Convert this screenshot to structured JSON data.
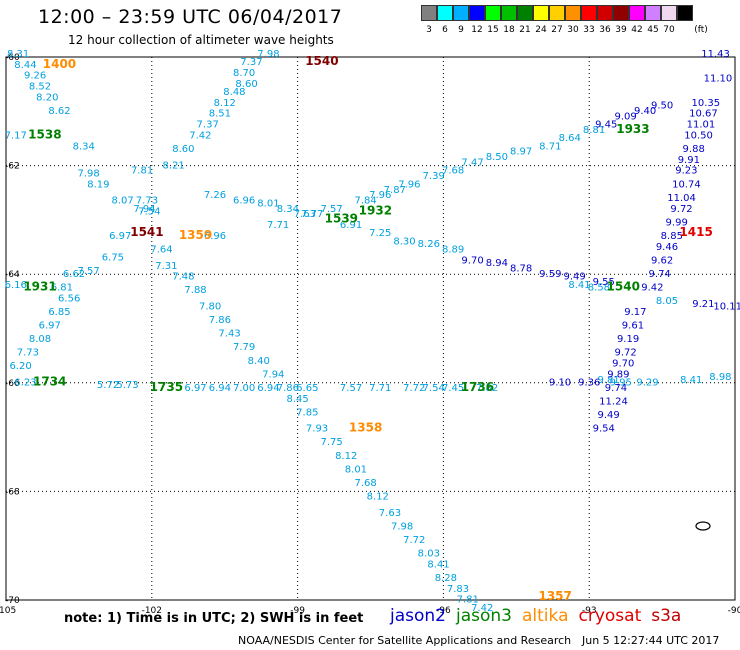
{
  "header": {
    "title": "12:00 – 23:59 UTC 06/04/2017",
    "subtitle": "12 hour collection of altimeter wave heights"
  },
  "legend": {
    "unit": "(ft)",
    "bins": [
      {
        "label": "3",
        "color": "#808080"
      },
      {
        "label": "6",
        "color": "#00ffff"
      },
      {
        "label": "9",
        "color": "#00b0ff"
      },
      {
        "label": "12",
        "color": "#0000ff"
      },
      {
        "label": "15",
        "color": "#00ff00"
      },
      {
        "label": "18",
        "color": "#00c000"
      },
      {
        "label": "21",
        "color": "#008000"
      },
      {
        "label": "24",
        "color": "#ffff00"
      },
      {
        "label": "27",
        "color": "#ffd000"
      },
      {
        "label": "30",
        "color": "#ff9000"
      },
      {
        "label": "33",
        "color": "#ff0000"
      },
      {
        "label": "36",
        "color": "#d00000"
      },
      {
        "label": "39",
        "color": "#900000"
      },
      {
        "label": "42",
        "color": "#ff00ff"
      },
      {
        "label": "45",
        "color": "#d080ff"
      },
      {
        "label": "70",
        "color": "#f0d8f0"
      },
      {
        "label": "",
        "color": "#000000"
      }
    ]
  },
  "axes": {
    "lon_labels": [
      "-105",
      "-102",
      "-99",
      "-96",
      "-93",
      "-90"
    ],
    "lat_labels": [
      "-60",
      "-62",
      "-64",
      "-66",
      "-68",
      "-70"
    ],
    "lon_range": [
      -105,
      -90
    ],
    "lat_range": [
      -70,
      -60
    ]
  },
  "colors": {
    "jason2": "#0000c8",
    "jason3": "#008000",
    "altika": "#ff8c00",
    "cryosat": "#e00000",
    "s3a": "#c00000",
    "cyan_track": "#00a0e0",
    "time_dark": "#800000"
  },
  "time_labels": [
    {
      "text": "1400",
      "lon": -103.9,
      "lat": -60.2,
      "color": "#ff8c00"
    },
    {
      "text": "1540",
      "lon": -98.5,
      "lat": -60.15,
      "color": "#800000"
    },
    {
      "text": "1538",
      "lon": -104.2,
      "lat": -61.5,
      "color": "#008000"
    },
    {
      "text": "1933",
      "lon": -92.1,
      "lat": -61.4,
      "color": "#008000"
    },
    {
      "text": "1932",
      "lon": -97.4,
      "lat": -62.9,
      "color": "#008000"
    },
    {
      "text": "1539",
      "lon": -98.1,
      "lat": -63.05,
      "color": "#008000"
    },
    {
      "text": "1541",
      "lon": -102.1,
      "lat": -63.3,
      "color": "#800000"
    },
    {
      "text": "1359",
      "lon": -101.1,
      "lat": -63.35,
      "color": "#ff8c00"
    },
    {
      "text": "1415",
      "lon": -90.8,
      "lat": -63.3,
      "color": "#e00000"
    },
    {
      "text": "1931",
      "lon": -104.3,
      "lat": -64.3,
      "color": "#008000"
    },
    {
      "text": "1540",
      "lon": -92.3,
      "lat": -64.3,
      "color": "#008000"
    },
    {
      "text": "1734",
      "lon": -104.1,
      "lat": -66.05,
      "color": "#008000"
    },
    {
      "text": "1735",
      "lon": -101.7,
      "lat": -66.15,
      "color": "#008000"
    },
    {
      "text": "1736",
      "lon": -95.3,
      "lat": -66.15,
      "color": "#008000"
    },
    {
      "text": "1358",
      "lon": -97.6,
      "lat": -66.9,
      "color": "#ff8c00"
    },
    {
      "text": "1357",
      "lon": -93.7,
      "lat": -70.0,
      "color": "#ff8c00"
    }
  ],
  "tracks": [
    {
      "name": "cyan NW-SE descending",
      "color": "#00a0e0",
      "points": [
        {
          "v": "8.31",
          "lon": -104.75,
          "lat": -60.0
        },
        {
          "v": "8.44",
          "lon": -104.6,
          "lat": -60.2
        },
        {
          "v": "9.26",
          "lon": -104.4,
          "lat": -60.4
        },
        {
          "v": "8.52",
          "lon": -104.3,
          "lat": -60.6
        },
        {
          "v": "8.20",
          "lon": -104.15,
          "lat": -60.8
        },
        {
          "v": "8.62",
          "lon": -103.9,
          "lat": -61.05
        },
        {
          "v": "8.34",
          "lon": -103.4,
          "lat": -61.7
        },
        {
          "v": "8.19",
          "lon": -103.1,
          "lat": -62.4
        },
        {
          "v": "8.07",
          "lon": -102.6,
          "lat": -62.7
        },
        {
          "v": "7.73",
          "lon": -102.1,
          "lat": -62.7
        },
        {
          "v": "7.54",
          "lon": -102.05,
          "lat": -62.9
        },
        {
          "v": "7.31",
          "lon": -101.7,
          "lat": -63.9
        },
        {
          "v": "7.48",
          "lon": -101.35,
          "lat": -64.1
        },
        {
          "v": "7.88",
          "lon": -101.1,
          "lat": -64.35
        },
        {
          "v": "7.80",
          "lon": -100.8,
          "lat": -64.65
        },
        {
          "v": "7.86",
          "lon": -100.6,
          "lat": -64.9
        },
        {
          "v": "7.43",
          "lon": -100.4,
          "lat": -65.15
        },
        {
          "v": "7.79",
          "lon": -100.1,
          "lat": -65.4
        },
        {
          "v": "8.40",
          "lon": -99.8,
          "lat": -65.65
        },
        {
          "v": "7.94",
          "lon": -99.5,
          "lat": -65.9
        },
        {
          "v": "7.86",
          "lon": -99.2,
          "lat": -66.15
        },
        {
          "v": "8.45",
          "lon": -99.0,
          "lat": -66.35
        },
        {
          "v": "7.85",
          "lon": -98.8,
          "lat": -66.6
        },
        {
          "v": "7.93",
          "lon": -98.6,
          "lat": -66.9
        },
        {
          "v": "7.75",
          "lon": -98.3,
          "lat": -67.15
        },
        {
          "v": "8.12",
          "lon": -98.0,
          "lat": -67.4
        },
        {
          "v": "8.01",
          "lon": -97.8,
          "lat": -67.65
        },
        {
          "v": "7.68",
          "lon": -97.6,
          "lat": -67.9
        },
        {
          "v": "8.12",
          "lon": -97.35,
          "lat": -68.15
        },
        {
          "v": "7.63",
          "lon": -97.1,
          "lat": -68.45
        },
        {
          "v": "7.98",
          "lon": -96.85,
          "lat": -68.7
        },
        {
          "v": "7.72",
          "lon": -96.6,
          "lat": -68.95
        },
        {
          "v": "8.03",
          "lon": -96.3,
          "lat": -69.2
        },
        {
          "v": "8.41",
          "lon": -96.1,
          "lat": -69.4
        },
        {
          "v": "8.28",
          "lon": -95.95,
          "lat": -69.65
        },
        {
          "v": "7.83",
          "lon": -95.7,
          "lat": -69.85
        },
        {
          "v": "7.81",
          "lon": -95.5,
          "lat": -70.05
        },
        {
          "v": "7.42",
          "lon": -95.2,
          "lat": -70.2
        }
      ]
    },
    {
      "name": "cyan SW-NE ascending",
      "color": "#00a0e0",
      "points": [
        {
          "v": "7.98",
          "lon": -99.6,
          "lat": -60.0
        },
        {
          "v": "7.37",
          "lon": -99.95,
          "lat": -60.15
        },
        {
          "v": "8.70",
          "lon": -100.1,
          "lat": -60.35
        },
        {
          "v": "8.60",
          "lon": -100.05,
          "lat": -60.55
        },
        {
          "v": "8.48",
          "lon": -100.3,
          "lat": -60.7
        },
        {
          "v": "8.12",
          "lon": -100.5,
          "lat": -60.9
        },
        {
          "v": "8.51",
          "lon": -100.6,
          "lat": -61.1
        },
        {
          "v": "7.37",
          "lon": -100.85,
          "lat": -61.3
        },
        {
          "v": "7.42",
          "lon": -101.0,
          "lat": -61.5
        },
        {
          "v": "8.60",
          "lon": -101.35,
          "lat": -61.75
        },
        {
          "v": "8.21",
          "lon": -101.55,
          "lat": -62.05
        },
        {
          "v": "7.94",
          "lon": -102.15,
          "lat": -62.85
        },
        {
          "v": "6.97",
          "lon": -102.65,
          "lat": -63.35
        },
        {
          "v": "6.75",
          "lon": -102.8,
          "lat": -63.75
        },
        {
          "v": "7.57",
          "lon": -103.3,
          "lat": -64.0
        },
        {
          "v": "6.81",
          "lon": -103.85,
          "lat": -64.3
        },
        {
          "v": "6.56",
          "lon": -103.7,
          "lat": -64.5
        },
        {
          "v": "6.85",
          "lon": -103.9,
          "lat": -64.75
        },
        {
          "v": "6.97",
          "lon": -104.1,
          "lat": -65.0
        },
        {
          "v": "8.08",
          "lon": -104.3,
          "lat": -65.25
        },
        {
          "v": "7.73",
          "lon": -104.55,
          "lat": -65.5
        },
        {
          "v": "6.20",
          "lon": -104.7,
          "lat": -65.75
        }
      ]
    },
    {
      "name": "cyan W-E lower band",
      "color": "#00a0e0",
      "points": [
        {
          "v": "6.23",
          "lon": -104.6,
          "lat": -66.05
        },
        {
          "v": "5.72",
          "lon": -102.9,
          "lat": -66.1
        },
        {
          "v": "5.73",
          "lon": -102.5,
          "lat": -66.1
        },
        {
          "v": "6.97",
          "lon": -101.1,
          "lat": -66.15
        },
        {
          "v": "6.94",
          "lon": -100.6,
          "lat": -66.15
        },
        {
          "v": "7.00",
          "lon": -100.1,
          "lat": -66.15
        },
        {
          "v": "6.94",
          "lon": -99.6,
          "lat": -66.15
        },
        {
          "v": "6.65",
          "lon": -98.8,
          "lat": -66.15
        },
        {
          "v": "7.57",
          "lon": -97.9,
          "lat": -66.15
        },
        {
          "v": "7.71",
          "lon": -97.3,
          "lat": -66.15
        },
        {
          "v": "7.72",
          "lon": -96.6,
          "lat": -66.15
        },
        {
          "v": "7.54",
          "lon": -96.2,
          "lat": -66.15
        },
        {
          "v": "7.45",
          "lon": -95.8,
          "lat": -66.15
        },
        {
          "v": "7.82",
          "lon": -95.1,
          "lat": -66.15
        }
      ]
    },
    {
      "name": "cyan SW-NE long",
      "color": "#00a0e0",
      "points": [
        {
          "v": "8.81",
          "lon": -92.9,
          "lat": -61.4
        },
        {
          "v": "8.64",
          "lon": -93.4,
          "lat": -61.55
        },
        {
          "v": "8.71",
          "lon": -93.8,
          "lat": -61.7
        },
        {
          "v": "8.97",
          "lon": -94.4,
          "lat": -61.8
        },
        {
          "v": "8.50",
          "lon": -94.9,
          "lat": -61.9
        },
        {
          "v": "7.47",
          "lon": -95.4,
          "lat": -62.0
        },
        {
          "v": "7.68",
          "lon": -95.8,
          "lat": -62.15
        },
        {
          "v": "7.39",
          "lon": -96.2,
          "lat": -62.25
        },
        {
          "v": "7.96",
          "lon": -96.7,
          "lat": -62.4
        },
        {
          "v": "7.87",
          "lon": -97.0,
          "lat": -62.5
        },
        {
          "v": "7.96",
          "lon": -97.3,
          "lat": -62.6
        },
        {
          "v": "7.84",
          "lon": -97.6,
          "lat": -62.7
        },
        {
          "v": "7.57",
          "lon": -98.3,
          "lat": -62.85
        },
        {
          "v": "7.77",
          "lon": -98.7,
          "lat": -62.95
        },
        {
          "v": "7.71",
          "lon": -99.4,
          "lat": -63.15
        },
        {
          "v": "6.96",
          "lon": -100.7,
          "lat": -63.35
        },
        {
          "v": "7.64",
          "lon": -101.8,
          "lat": -63.6
        },
        {
          "v": "6.62",
          "lon": -103.6,
          "lat": -64.05
        },
        {
          "v": "6.16",
          "lon": -104.8,
          "lat": -64.25
        }
      ]
    },
    {
      "name": "cyan WNW-ESE",
      "color": "#00a0e0",
      "points": [
        {
          "v": "7.17",
          "lon": -104.8,
          "lat": -61.5
        },
        {
          "v": "7.98",
          "lon": -103.3,
          "lat": -62.2
        },
        {
          "v": "7.81",
          "lon": -102.2,
          "lat": -62.15
        },
        {
          "v": "7.26",
          "lon": -100.7,
          "lat": -62.6
        },
        {
          "v": "6.96",
          "lon": -100.1,
          "lat": -62.7
        },
        {
          "v": "8.01",
          "lon": -99.6,
          "lat": -62.75
        },
        {
          "v": "8.34",
          "lon": -99.2,
          "lat": -62.85
        },
        {
          "v": "7.63",
          "lon": -98.85,
          "lat": -62.95
        },
        {
          "v": "6.91",
          "lon": -97.9,
          "lat": -63.15
        },
        {
          "v": "7.25",
          "lon": -97.3,
          "lat": -63.3
        },
        {
          "v": "8.30",
          "lon": -96.8,
          "lat": -63.45
        },
        {
          "v": "8.26",
          "lon": -96.3,
          "lat": -63.5
        },
        {
          "v": "8.89",
          "lon": -95.8,
          "lat": -63.6
        },
        {
          "v": "8.41",
          "lon": -93.2,
          "lat": -64.25
        },
        {
          "v": "8.58",
          "lon": -92.8,
          "lat": -64.3
        },
        {
          "v": "8.05",
          "lon": -91.4,
          "lat": -64.55
        },
        {
          "v": "9.81",
          "lon": -92.6,
          "lat": -66.0
        },
        {
          "v": "9.95",
          "lon": -92.35,
          "lat": -66.05
        },
        {
          "v": "9.29",
          "lon": -91.8,
          "lat": -66.05
        },
        {
          "v": "8.41",
          "lon": -90.9,
          "lat": -66.0
        },
        {
          "v": "8.98",
          "lon": -90.3,
          "lat": -65.95
        }
      ]
    },
    {
      "name": "jason2 N-S east",
      "color": "#0000c8",
      "points": [
        {
          "v": "11.43",
          "lon": -90.4,
          "lat": -60.0
        },
        {
          "v": "11.10",
          "lon": -90.35,
          "lat": -60.45
        },
        {
          "v": "10.35",
          "lon": -90.6,
          "lat": -60.9
        },
        {
          "v": "10.67",
          "lon": -90.65,
          "lat": -61.1
        },
        {
          "v": "11.01",
          "lon": -90.7,
          "lat": -61.3
        },
        {
          "v": "10.50",
          "lon": -90.75,
          "lat": -61.5
        },
        {
          "v": "9.88",
          "lon": -90.85,
          "lat": -61.75
        },
        {
          "v": "9.91",
          "lon": -90.95,
          "lat": -61.95
        },
        {
          "v": "9.23",
          "lon": -91.0,
          "lat": -62.15
        },
        {
          "v": "10.74",
          "lon": -91.0,
          "lat": -62.4
        },
        {
          "v": "11.04",
          "lon": -91.1,
          "lat": -62.65
        },
        {
          "v": "9.72",
          "lon": -91.1,
          "lat": -62.85
        },
        {
          "v": "9.99",
          "lon": -91.2,
          "lat": -63.1
        },
        {
          "v": "8.85",
          "lon": -91.3,
          "lat": -63.35
        },
        {
          "v": "9.46",
          "lon": -91.4,
          "lat": -63.55
        },
        {
          "v": "9.62",
          "lon": -91.5,
          "lat": -63.8
        },
        {
          "v": "9.74",
          "lon": -91.55,
          "lat": -64.05
        },
        {
          "v": "9.42",
          "lon": -91.7,
          "lat": -64.3
        },
        {
          "v": "9.17",
          "lon": -92.05,
          "lat": -64.75
        },
        {
          "v": "9.61",
          "lon": -92.1,
          "lat": -65.0
        },
        {
          "v": "9.19",
          "lon": -92.2,
          "lat": -65.25
        },
        {
          "v": "9.72",
          "lon": -92.25,
          "lat": -65.5
        },
        {
          "v": "9.70",
          "lon": -92.3,
          "lat": -65.7
        },
        {
          "v": "9.89",
          "lon": -92.4,
          "lat": -65.9
        },
        {
          "v": "9.74",
          "lon": -92.45,
          "lat": -66.15
        },
        {
          "v": "11.24",
          "lon": -92.5,
          "lat": -66.4
        },
        {
          "v": "9.49",
          "lon": -92.6,
          "lat": -66.65
        },
        {
          "v": "9.54",
          "lon": -92.7,
          "lat": -66.9
        }
      ]
    },
    {
      "name": "jason2 W-E",
      "color": "#0000c8",
      "points": [
        {
          "v": "9.70",
          "lon": -95.4,
          "lat": -63.8
        },
        {
          "v": "8.94",
          "lon": -94.9,
          "lat": -63.85
        },
        {
          "v": "8.78",
          "lon": -94.4,
          "lat": -63.95
        },
        {
          "v": "9.59",
          "lon": -93.8,
          "lat": -64.05
        },
        {
          "v": "9.49",
          "lon": -93.3,
          "lat": -64.1
        },
        {
          "v": "9.55",
          "lon": -92.7,
          "lat": -64.2
        },
        {
          "v": "9.21",
          "lon": -90.65,
          "lat": -64.6
        },
        {
          "v": "10.11",
          "lon": -90.15,
          "lat": -64.65
        }
      ]
    },
    {
      "name": "jason2 NE",
      "color": "#0000c8",
      "points": [
        {
          "v": "9.45",
          "lon": -92.65,
          "lat": -61.3
        },
        {
          "v": "9.09",
          "lon": -92.25,
          "lat": -61.15
        },
        {
          "v": "9.40",
          "lon": -91.85,
          "lat": -61.05
        },
        {
          "v": "9.50",
          "lon": -91.5,
          "lat": -60.95
        },
        {
          "v": "9.10",
          "lon": -93.6,
          "lat": -66.05
        },
        {
          "v": "9.36",
          "lon": -93.0,
          "lat": -66.05
        }
      ]
    }
  ],
  "footer": {
    "note": "note: 1) Time is in UTC; 2) SWH is in feet",
    "satellites": [
      {
        "label": "jason2",
        "color": "#0000c8"
      },
      {
        "label": "jason3",
        "color": "#008000"
      },
      {
        "label": "altika",
        "color": "#ff8c00"
      },
      {
        "label": "cryosat",
        "color": "#e00000"
      },
      {
        "label": "s3a",
        "color": "#c00000"
      }
    ],
    "credit_left": "NOAA/NESDIS Center for Satellite Applications and Research",
    "credit_right": "Jun  5 12:27:44 UTC 2017"
  }
}
